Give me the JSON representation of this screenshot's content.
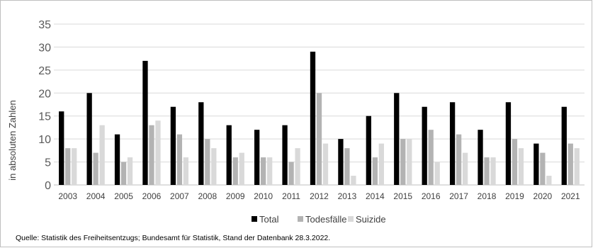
{
  "chart_data": {
    "type": "bar",
    "categories": [
      "2003",
      "2004",
      "2005",
      "2006",
      "2007",
      "2008",
      "2009",
      "2010",
      "2011",
      "2012",
      "2013",
      "2014",
      "2015",
      "2016",
      "2017",
      "2018",
      "2019",
      "2020",
      "2021"
    ],
    "series": [
      {
        "name": "Total",
        "color": "#000000",
        "values": [
          16,
          20,
          11,
          27,
          17,
          18,
          13,
          12,
          13,
          29,
          10,
          15,
          20,
          17,
          18,
          12,
          18,
          9,
          17
        ]
      },
      {
        "name": "Todesfälle",
        "color": "#b3b3b3",
        "values": [
          8,
          7,
          5,
          13,
          11,
          10,
          6,
          6,
          5,
          20,
          8,
          6,
          10,
          12,
          11,
          6,
          10,
          7,
          9
        ]
      },
      {
        "name": "Suizide",
        "color": "#d9d9d9",
        "values": [
          8,
          13,
          6,
          14,
          6,
          8,
          7,
          6,
          8,
          9,
          2,
          9,
          10,
          5,
          7,
          6,
          8,
          2,
          8
        ]
      }
    ],
    "ylabel": "in absoluten Zahlen",
    "ylim": [
      0,
      35
    ],
    "yticks": [
      0,
      5,
      10,
      15,
      20,
      25,
      30,
      35
    ],
    "grid": true,
    "legend_position": "bottom"
  },
  "source_note": "Quelle: Statistik des Freiheitsentzugs; Bundesamt für Statistik, Stand der Datenbank 28.3.2022."
}
